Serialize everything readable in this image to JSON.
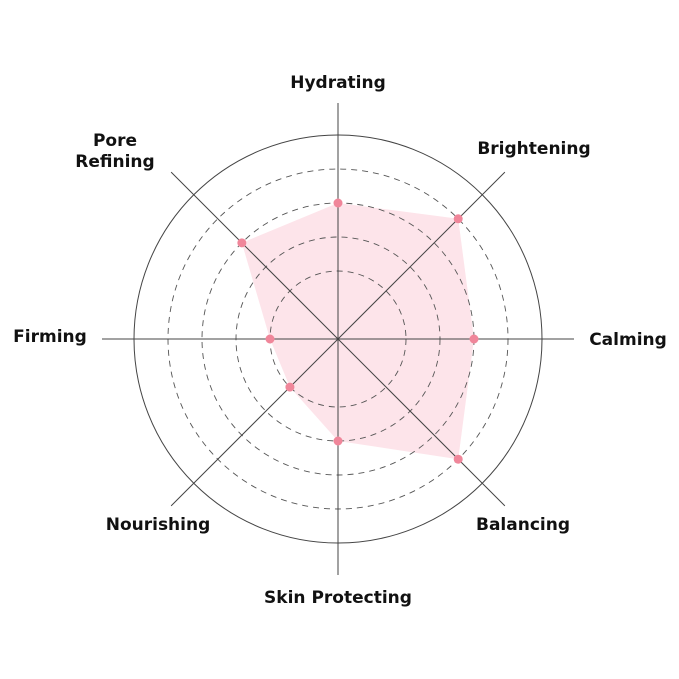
{
  "chart_data": {
    "type": "radar",
    "categories": [
      "Hydrating",
      "Brightening",
      "Calming",
      "Balancing",
      "Skin Protecting",
      "Nourishing",
      "Firming",
      "Pore Refining"
    ],
    "values": [
      4,
      5,
      4,
      5,
      3,
      2,
      2,
      4
    ],
    "rlim": [
      0,
      6
    ],
    "grid_levels": [
      2,
      3,
      4,
      5,
      6
    ],
    "grid": true,
    "fill_color": "#fde4ea",
    "marker_color": "#f0869a",
    "line_color": "#333333"
  }
}
